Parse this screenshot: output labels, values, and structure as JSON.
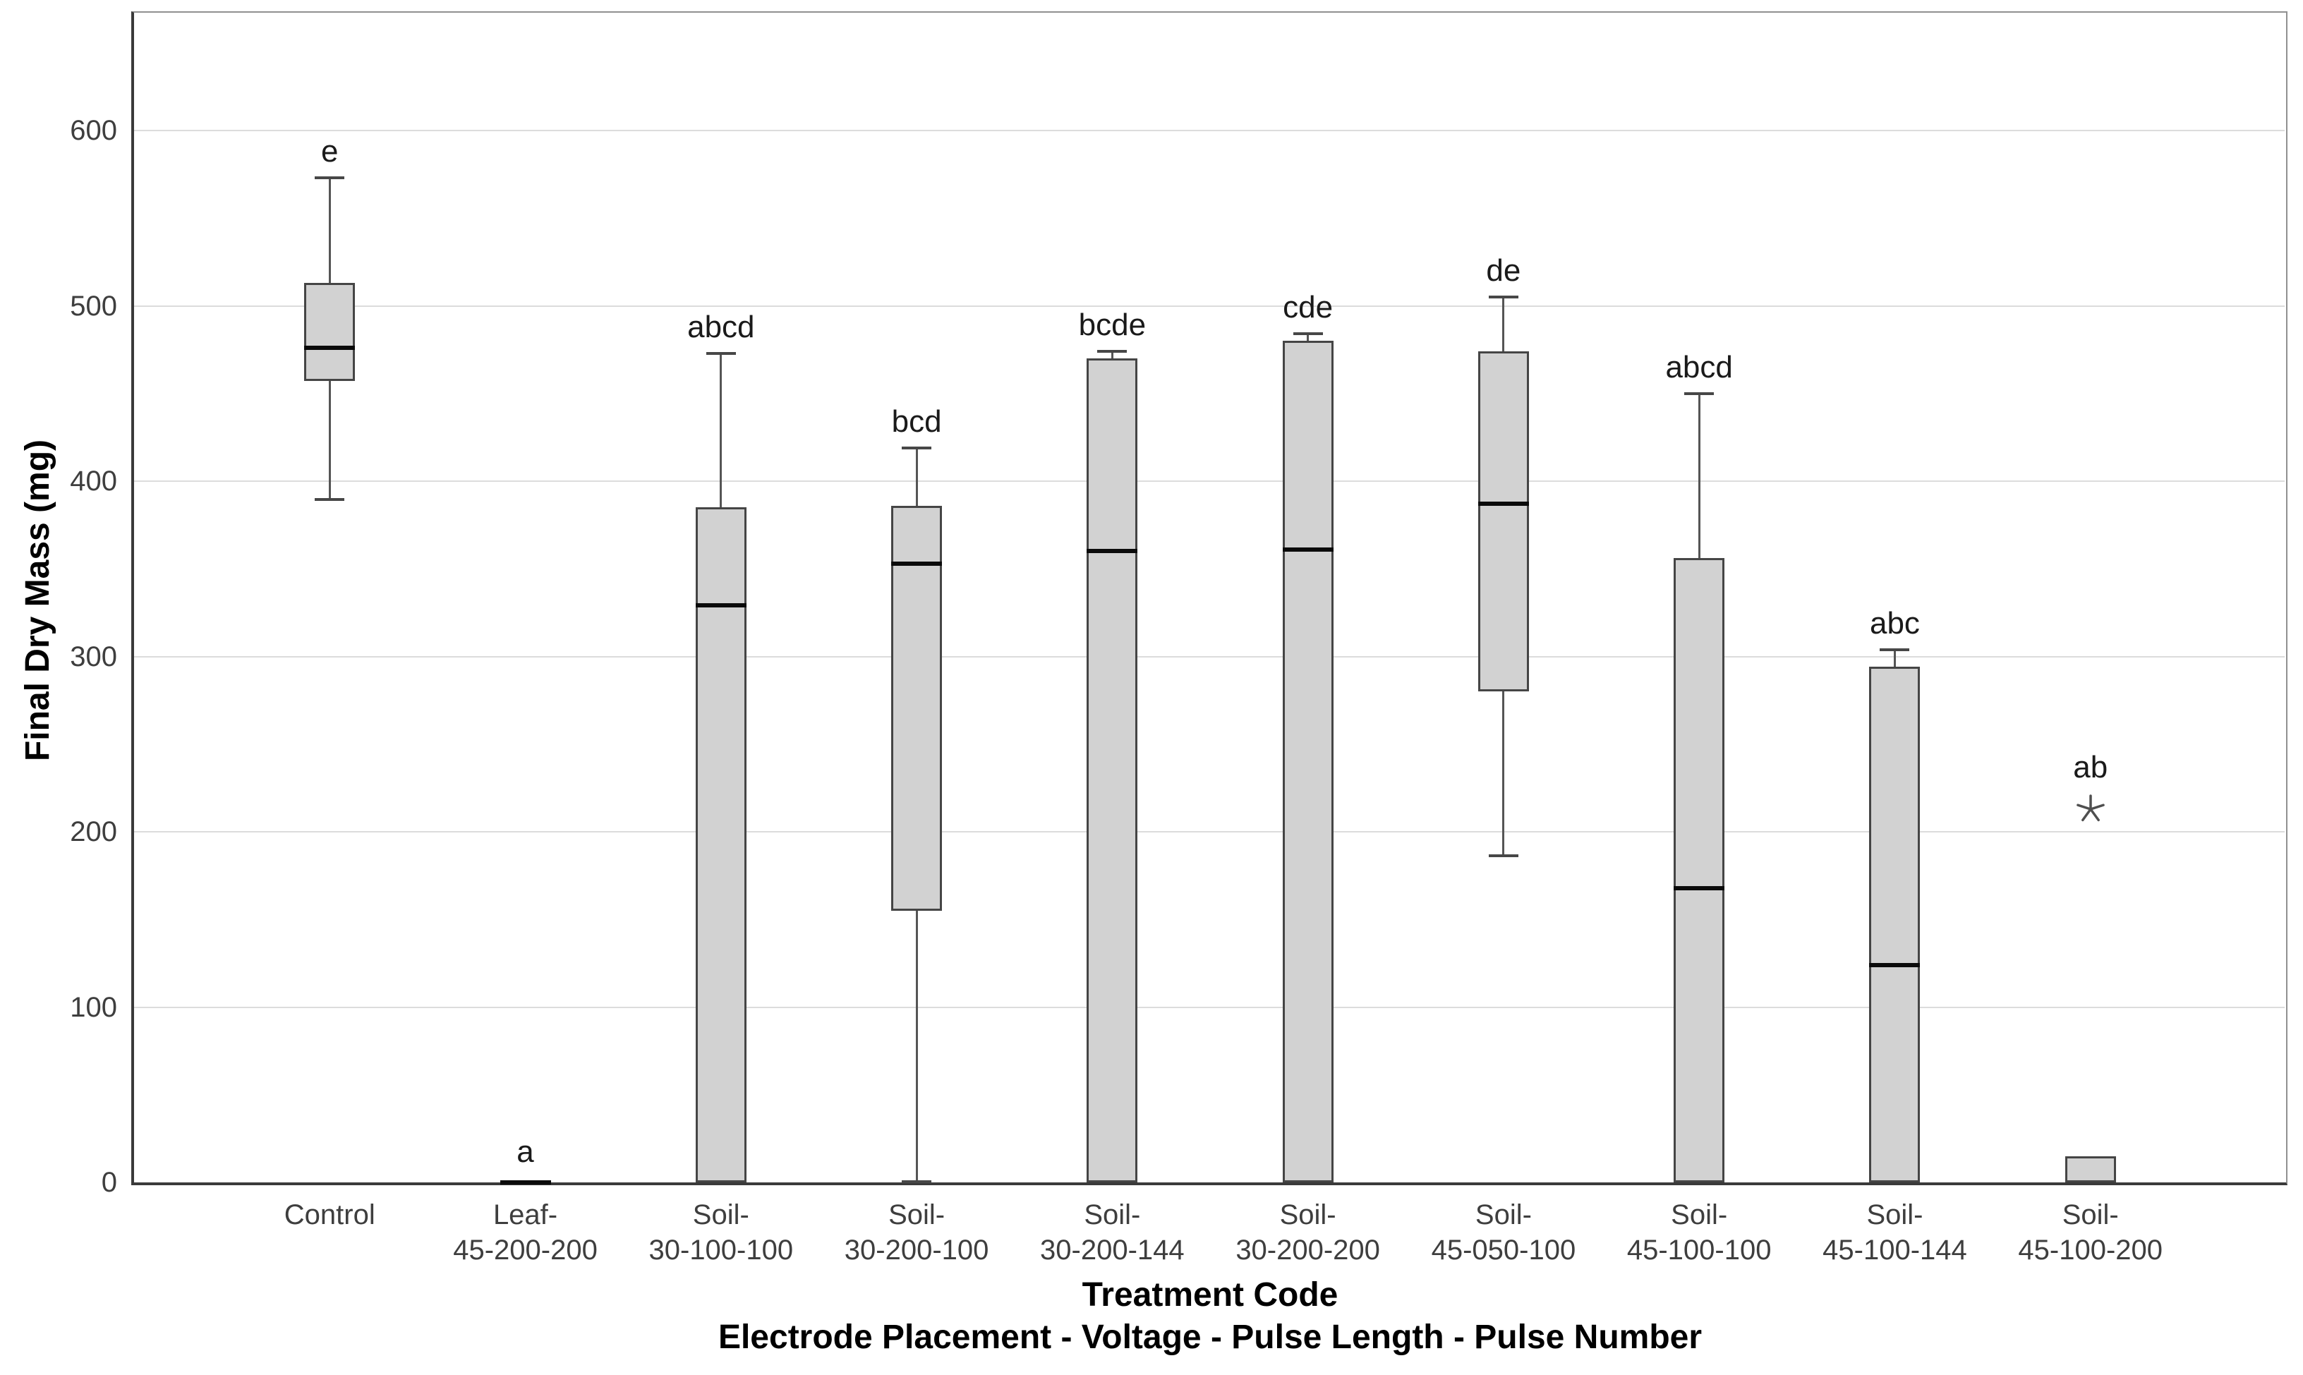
{
  "chart_data": {
    "type": "box",
    "title": "",
    "ylabel": "Final Dry Mass (mg)",
    "xlabel": "Treatment Code",
    "xlabel_sub": "Electrode Placement - Voltage - Pulse Length - Pulse Number",
    "ylim": [
      0,
      667
    ],
    "yticks": [
      0,
      100,
      200,
      300,
      400,
      500,
      600
    ],
    "grid": "horizontal gridlines at each y tick, light gray",
    "legend": "none",
    "outlier_marker": "star-asterisk",
    "colors": {
      "box_fill": "#d2d2d2",
      "box_border": "#454545",
      "median": "#0b0b0b",
      "whisker": "#555555",
      "gridline": "#dcdcdc",
      "axis": "#3a3a3a",
      "tick_text": "#3e3e3e",
      "title_text": "#000000",
      "background": "#ffffff"
    },
    "boxes": [
      {
        "label_lines": [
          "Control"
        ],
        "letter": "e",
        "min": 389,
        "q1": 457,
        "median": 476,
        "q3": 513,
        "max": 573
      },
      {
        "label_lines": [
          "Leaf-",
          "45-200-200"
        ],
        "letter": "a",
        "min": 0,
        "q1": 0,
        "median": 0,
        "q3": 0,
        "max": 0,
        "median_only": true
      },
      {
        "label_lines": [
          "Soil-",
          "30-100-100"
        ],
        "letter": "abcd",
        "min": 0,
        "q1": 0,
        "median": 329,
        "q3": 385,
        "max": 473
      },
      {
        "label_lines": [
          "Soil-",
          "30-200-100"
        ],
        "letter": "bcd",
        "min": 0,
        "q1": 155,
        "median": 353,
        "q3": 386,
        "max": 419
      },
      {
        "label_lines": [
          "Soil-",
          "30-200-144"
        ],
        "letter": "bcde",
        "min": 0,
        "q1": 0,
        "median": 360,
        "q3": 470,
        "max": 474
      },
      {
        "label_lines": [
          "Soil-",
          "30-200-200"
        ],
        "letter": "cde",
        "min": 0,
        "q1": 0,
        "median": 361,
        "q3": 480,
        "max": 484
      },
      {
        "label_lines": [
          "Soil-",
          "45-050-100"
        ],
        "letter": "de",
        "min": 186,
        "q1": 280,
        "median": 387,
        "q3": 474,
        "max": 505
      },
      {
        "label_lines": [
          "Soil-",
          "45-100-100"
        ],
        "letter": "abcd",
        "min": 0,
        "q1": 0,
        "median": 168,
        "q3": 356,
        "max": 450
      },
      {
        "label_lines": [
          "Soil-",
          "45-100-144"
        ],
        "letter": "abc",
        "min": 0,
        "q1": 0,
        "median": 124,
        "q3": 294,
        "max": 304
      },
      {
        "label_lines": [
          "Soil-",
          "45-100-200"
        ],
        "letter": "ab",
        "min": 0,
        "q1": 0,
        "median": 0,
        "q3": 15,
        "max": 15,
        "outliers": [
          213
        ]
      }
    ]
  }
}
